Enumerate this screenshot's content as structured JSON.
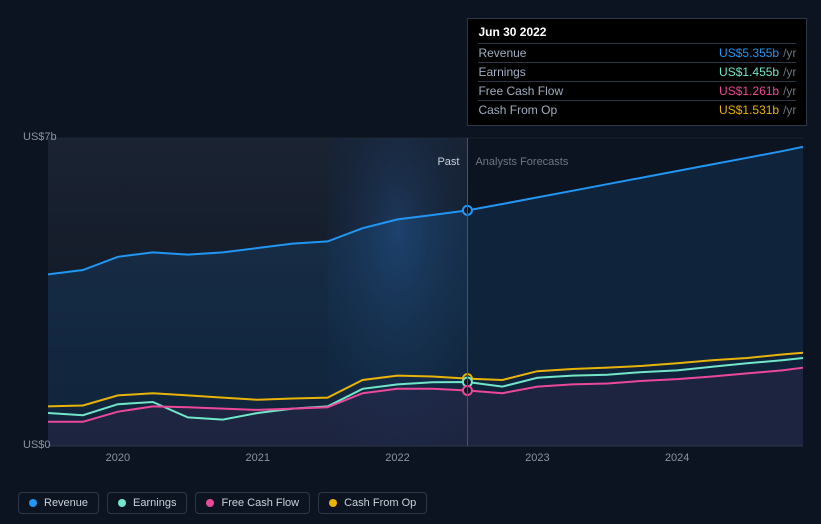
{
  "chart": {
    "type": "line-area",
    "background_color": "#0d1421",
    "grid_color": "#2d3748",
    "divider_color": "#4a5366",
    "text_color": "#8b949e",
    "y_axis": {
      "min": 0,
      "max": 7,
      "labels": [
        {
          "value": 0,
          "text": "US$0"
        },
        {
          "value": 7,
          "text": "US$7b"
        }
      ]
    },
    "x_axis": {
      "min": 2019.5,
      "max": 2024.9,
      "labels": [
        "2020",
        "2021",
        "2022",
        "2023",
        "2024"
      ]
    },
    "marker_x": 2022.5,
    "section_labels": {
      "past": "Past",
      "forecast": "Analysts Forecasts"
    },
    "past_bg_gradient": [
      "#1a2332",
      "#0d1421"
    ],
    "spotlight_gradient": [
      "#1e3a5f",
      "#0d1421"
    ],
    "series": [
      {
        "id": "revenue",
        "label": "Revenue",
        "color": "#2196f3",
        "fill_opacity": 0.12,
        "marker_value": 5.355,
        "data": [
          [
            2019.5,
            3.9
          ],
          [
            2019.75,
            4.0
          ],
          [
            2020.0,
            4.3
          ],
          [
            2020.25,
            4.4
          ],
          [
            2020.5,
            4.35
          ],
          [
            2020.75,
            4.4
          ],
          [
            2021.0,
            4.5
          ],
          [
            2021.25,
            4.6
          ],
          [
            2021.5,
            4.65
          ],
          [
            2021.75,
            4.95
          ],
          [
            2022.0,
            5.15
          ],
          [
            2022.25,
            5.25
          ],
          [
            2022.5,
            5.355
          ],
          [
            2022.75,
            5.5
          ],
          [
            2023.0,
            5.65
          ],
          [
            2023.25,
            5.8
          ],
          [
            2023.5,
            5.95
          ],
          [
            2023.75,
            6.1
          ],
          [
            2024.0,
            6.25
          ],
          [
            2024.25,
            6.4
          ],
          [
            2024.5,
            6.55
          ],
          [
            2024.75,
            6.7
          ],
          [
            2024.9,
            6.8
          ]
        ]
      },
      {
        "id": "cash_from_op",
        "label": "Cash From Op",
        "color": "#eab308",
        "fill_opacity": 0,
        "marker_value": 1.531,
        "data": [
          [
            2019.5,
            0.9
          ],
          [
            2019.75,
            0.92
          ],
          [
            2020.0,
            1.15
          ],
          [
            2020.25,
            1.2
          ],
          [
            2020.5,
            1.15
          ],
          [
            2020.75,
            1.1
          ],
          [
            2021.0,
            1.05
          ],
          [
            2021.25,
            1.08
          ],
          [
            2021.5,
            1.1
          ],
          [
            2021.75,
            1.5
          ],
          [
            2022.0,
            1.6
          ],
          [
            2022.25,
            1.58
          ],
          [
            2022.5,
            1.531
          ],
          [
            2022.75,
            1.5
          ],
          [
            2023.0,
            1.7
          ],
          [
            2023.25,
            1.75
          ],
          [
            2023.5,
            1.78
          ],
          [
            2023.75,
            1.82
          ],
          [
            2024.0,
            1.88
          ],
          [
            2024.25,
            1.95
          ],
          [
            2024.5,
            2.0
          ],
          [
            2024.75,
            2.08
          ],
          [
            2024.9,
            2.12
          ]
        ]
      },
      {
        "id": "earnings",
        "label": "Earnings",
        "color": "#71e6c8",
        "fill_opacity": 0,
        "marker_value": 1.455,
        "data": [
          [
            2019.5,
            0.75
          ],
          [
            2019.75,
            0.7
          ],
          [
            2020.0,
            0.95
          ],
          [
            2020.25,
            1.0
          ],
          [
            2020.5,
            0.65
          ],
          [
            2020.75,
            0.6
          ],
          [
            2021.0,
            0.75
          ],
          [
            2021.25,
            0.85
          ],
          [
            2021.5,
            0.9
          ],
          [
            2021.75,
            1.3
          ],
          [
            2022.0,
            1.4
          ],
          [
            2022.25,
            1.45
          ],
          [
            2022.5,
            1.455
          ],
          [
            2022.75,
            1.35
          ],
          [
            2023.0,
            1.55
          ],
          [
            2023.25,
            1.6
          ],
          [
            2023.5,
            1.62
          ],
          [
            2023.75,
            1.68
          ],
          [
            2024.0,
            1.72
          ],
          [
            2024.25,
            1.8
          ],
          [
            2024.5,
            1.88
          ],
          [
            2024.75,
            1.95
          ],
          [
            2024.9,
            2.0
          ]
        ]
      },
      {
        "id": "free_cash_flow",
        "label": "Free Cash Flow",
        "color": "#ec4899",
        "fill_opacity": 0.06,
        "marker_value": 1.261,
        "data": [
          [
            2019.5,
            0.55
          ],
          [
            2019.75,
            0.55
          ],
          [
            2020.0,
            0.78
          ],
          [
            2020.25,
            0.9
          ],
          [
            2020.5,
            0.88
          ],
          [
            2020.75,
            0.85
          ],
          [
            2021.0,
            0.82
          ],
          [
            2021.25,
            0.85
          ],
          [
            2021.5,
            0.88
          ],
          [
            2021.75,
            1.2
          ],
          [
            2022.0,
            1.3
          ],
          [
            2022.25,
            1.3
          ],
          [
            2022.5,
            1.261
          ],
          [
            2022.75,
            1.2
          ],
          [
            2023.0,
            1.35
          ],
          [
            2023.25,
            1.4
          ],
          [
            2023.5,
            1.42
          ],
          [
            2023.75,
            1.48
          ],
          [
            2024.0,
            1.52
          ],
          [
            2024.25,
            1.58
          ],
          [
            2024.5,
            1.65
          ],
          [
            2024.75,
            1.72
          ],
          [
            2024.9,
            1.78
          ]
        ]
      }
    ]
  },
  "tooltip": {
    "date": "Jun 30 2022",
    "unit": "/yr",
    "rows": [
      {
        "label": "Revenue",
        "value": "US$5.355b",
        "color": "#2196f3"
      },
      {
        "label": "Earnings",
        "value": "US$1.455b",
        "color": "#71e6c8"
      },
      {
        "label": "Free Cash Flow",
        "value": "US$1.261b",
        "color": "#ec4899"
      },
      {
        "label": "Cash From Op",
        "value": "US$1.531b",
        "color": "#eab308"
      }
    ]
  },
  "legend": [
    {
      "id": "revenue",
      "label": "Revenue",
      "color": "#2196f3"
    },
    {
      "id": "earnings",
      "label": "Earnings",
      "color": "#71e6c8"
    },
    {
      "id": "free_cash_flow",
      "label": "Free Cash Flow",
      "color": "#ec4899"
    },
    {
      "id": "cash_from_op",
      "label": "Cash From Op",
      "color": "#eab308"
    }
  ]
}
